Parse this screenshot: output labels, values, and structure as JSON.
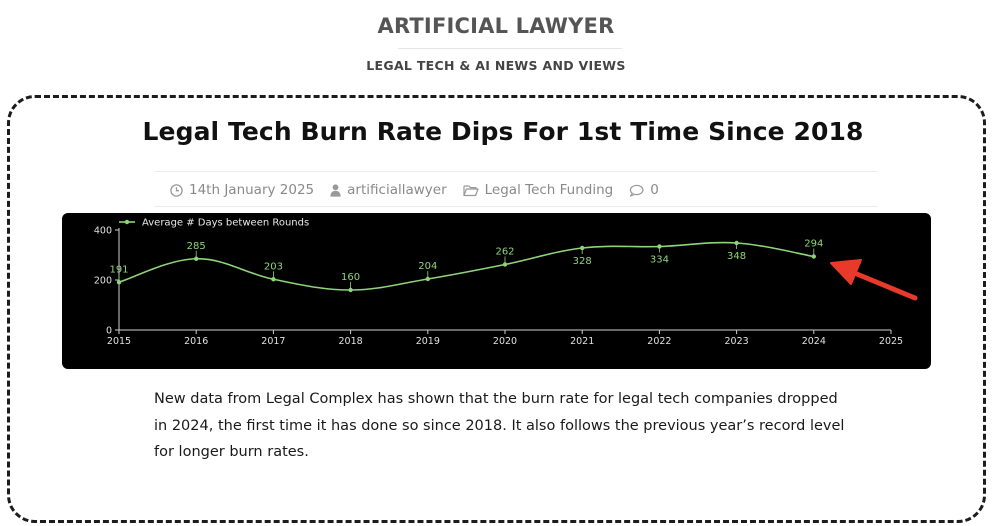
{
  "site": {
    "title": "ARTIFICIAL LAWYER",
    "tagline": "LEGAL TECH & AI NEWS AND VIEWS"
  },
  "article": {
    "title": "Legal Tech Burn Rate Dips For 1st Time Since 2018",
    "date": "14th January 2025",
    "author": "artificiallawyer",
    "category": "Legal Tech Funding",
    "comments": "0",
    "body": "New data from Legal Complex has shown that the burn rate for legal tech companies dropped in 2024, the first time it has done so since 2018. It also follows the previous year’s record level for longer burn rates."
  },
  "icons": {
    "date": "clock-icon",
    "author": "user-icon",
    "category": "folder-icon",
    "comments": "comment-icon",
    "annotation": "red-arrow"
  },
  "colors": {
    "line": "#8fd47a",
    "chart_bg": "#000000",
    "arrow": "#e8392b",
    "card_border": "#1c1c1c"
  },
  "chart_data": {
    "type": "line",
    "series": [
      {
        "name": "Average # Days between Rounds",
        "x": [
          2015,
          2016,
          2017,
          2018,
          2019,
          2020,
          2021,
          2022,
          2023,
          2024
        ],
        "values": [
          191,
          285,
          203,
          160,
          204,
          262,
          328,
          334,
          348,
          294
        ]
      }
    ],
    "x_ticks": [
      "2015",
      "2016",
      "2017",
      "2018",
      "2019",
      "2020",
      "2021",
      "2022",
      "2023",
      "2024",
      "2025"
    ],
    "y_ticks": [
      "0",
      "200",
      "400"
    ],
    "xlim": [
      2015,
      2025
    ],
    "ylim": [
      0,
      400
    ],
    "legend": "top-left",
    "grid": false
  }
}
